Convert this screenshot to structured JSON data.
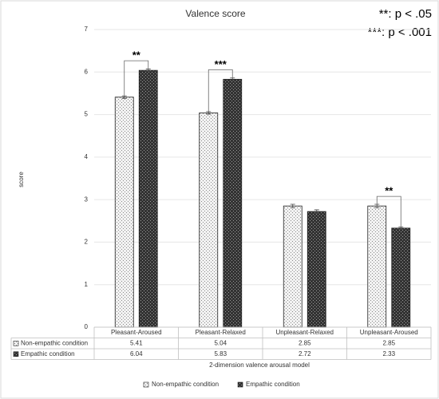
{
  "chart_data": {
    "type": "bar",
    "title": "Valence score",
    "x_label": "2-dimension valence arousal model",
    "y_label": "score",
    "notes": [
      "**: p < .05",
      "***: p < .001"
    ],
    "categories": [
      "Pleasant-Aroused",
      "Pleasant-Relaxed",
      "Unpleasant-Relaxed",
      "Unpleasant-Aroused"
    ],
    "series": [
      {
        "name": "Non-empathic condition",
        "color": "#f2f2f2",
        "values": [
          5.41,
          5.04,
          2.85,
          2.85
        ],
        "errors": [
          0.03,
          0.03,
          0.04,
          0.04
        ]
      },
      {
        "name": "Empathic condition",
        "color": "#333333",
        "values": [
          6.04,
          5.83,
          2.72,
          2.33
        ],
        "errors": [
          0.03,
          0.03,
          0.04,
          0.03
        ]
      }
    ],
    "significance": [
      "**",
      "***",
      null,
      "**"
    ],
    "ylim": [
      0,
      7
    ],
    "yticks": [
      0,
      1,
      2,
      3,
      4,
      5,
      6,
      7
    ],
    "grid": true,
    "legend": "bottom"
  }
}
